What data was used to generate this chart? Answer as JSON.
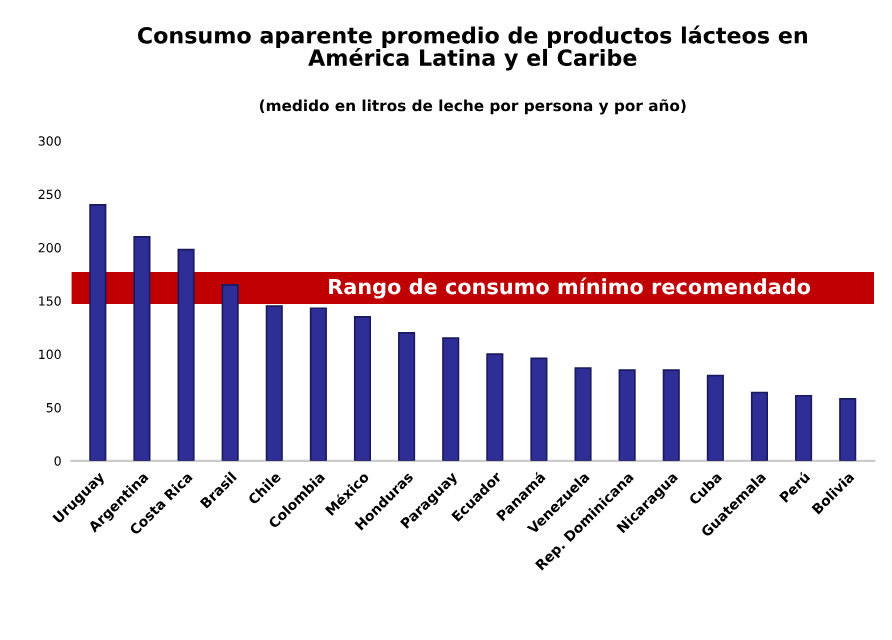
{
  "chart_data": {
    "type": "bar",
    "title": "Consumo aparente promedio de productos lácteos en\nAmérica Latina y el Caribe",
    "subtitle": "(medido en litros de leche por persona y por año)",
    "categories": [
      "Uruguay",
      "Argentina",
      "Costa Rica",
      "Brasil",
      "Chile",
      "Colombia",
      "México",
      "Honduras",
      "Paraguay",
      "Ecuador",
      "Panamá",
      "Venezuela",
      "Rep. Dominicana",
      "Nicaragua",
      "Cuba",
      "Guatemala",
      "Perú",
      "Bolivia"
    ],
    "values": [
      240,
      210,
      198,
      165,
      145,
      143,
      135,
      120,
      115,
      100,
      96,
      87,
      85,
      85,
      80,
      64,
      61,
      58
    ],
    "color": "#2e2e96",
    "ylim": [
      0,
      300
    ],
    "yticks": [
      0,
      50,
      100,
      150,
      200,
      250,
      300
    ],
    "grid": false,
    "bands": [
      {
        "axis": "y",
        "from": 147,
        "to": 177,
        "label": "Rango de consumo mínimo recomendado",
        "color": "#c00000"
      }
    ]
  }
}
